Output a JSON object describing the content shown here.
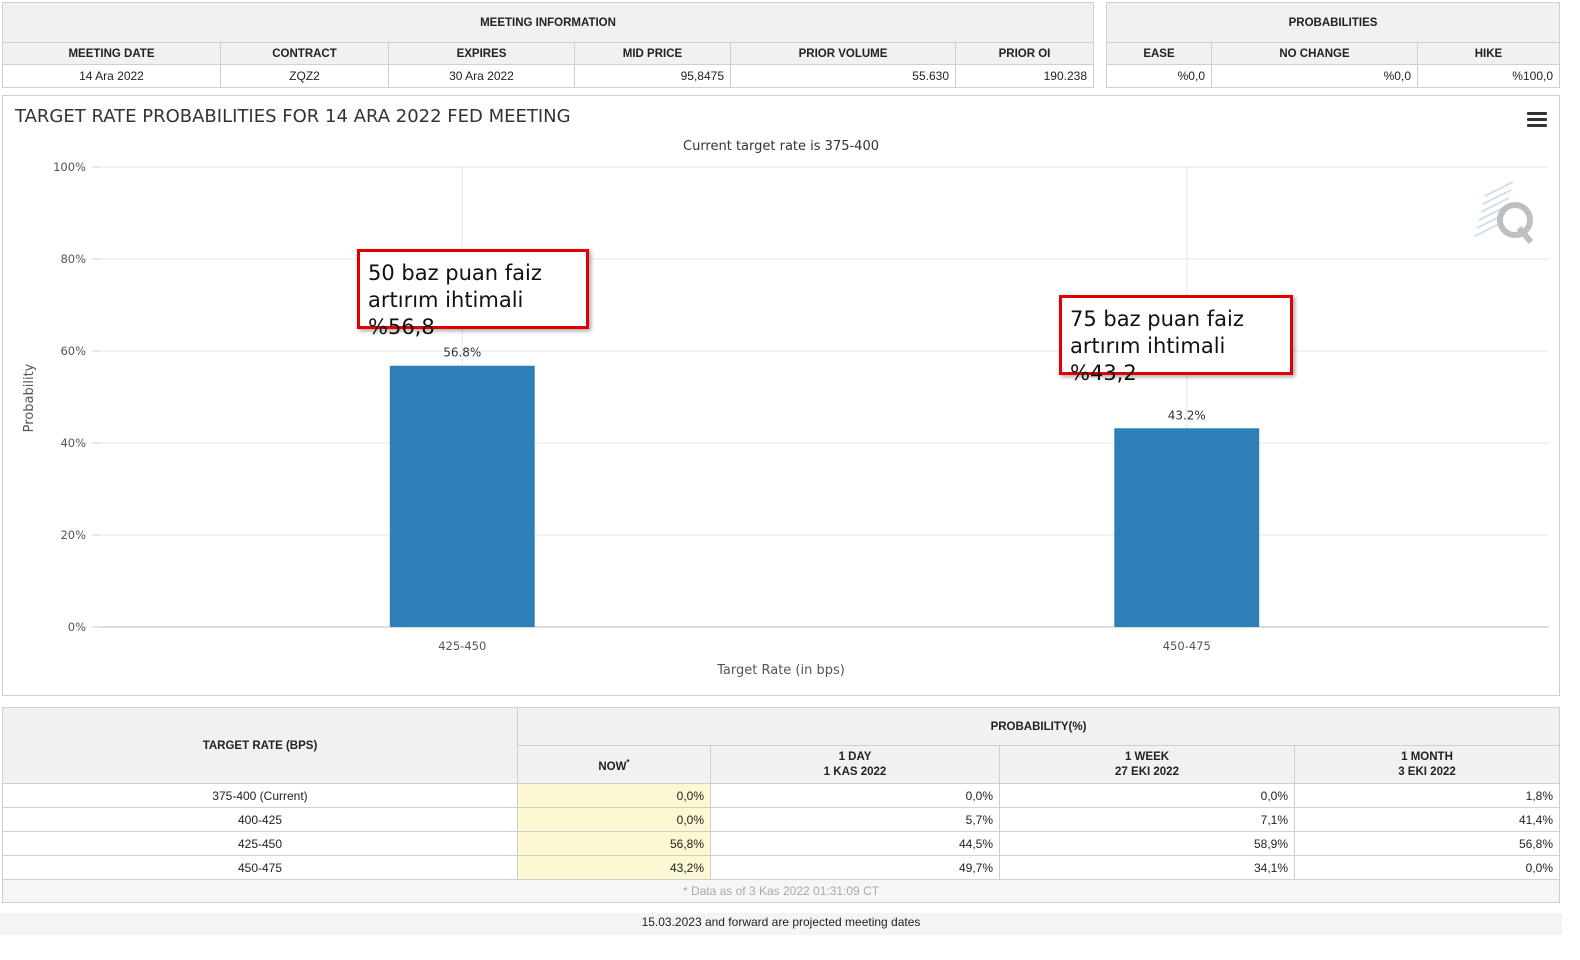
{
  "meeting_info": {
    "group_title": "MEETING INFORMATION",
    "headers": [
      "MEETING DATE",
      "CONTRACT",
      "EXPIRES",
      "MID PRICE",
      "PRIOR VOLUME",
      "PRIOR OI"
    ],
    "row": [
      "14 Ara 2022",
      "ZQZ2",
      "30 Ara 2022",
      "95,8475",
      "55.630",
      "190.238"
    ]
  },
  "probabilities": {
    "group_title": "PROBABILITIES",
    "headers": [
      "EASE",
      "NO CHANGE",
      "HIKE"
    ],
    "row": [
      "%0,0",
      "%0,0",
      "%100,0"
    ]
  },
  "chart_data": {
    "type": "bar",
    "title": "TARGET RATE PROBABILITIES FOR 14 ARA 2022 FED MEETING",
    "subtitle": "Current target rate is 375-400",
    "categories": [
      "425-450",
      "450-475"
    ],
    "values": [
      56.8,
      43.2
    ],
    "data_labels": [
      "56.8%",
      "43.2%"
    ],
    "xlabel": "Target Rate (in bps)",
    "ylabel": "Probability",
    "ylim": [
      0,
      100
    ],
    "yticks": [
      0,
      20,
      40,
      60,
      80,
      100
    ],
    "ytick_labels": [
      "0%",
      "20%",
      "40%",
      "60%",
      "80%",
      "100%"
    ],
    "bar_color": "#2e7fb8",
    "grid": true,
    "annotations": [
      {
        "line1": "50 baz puan faiz",
        "line2": "artırım ihtimali %56,8"
      },
      {
        "line1": "75 baz puan faiz",
        "line2": "artırım ihtimali %43,2"
      }
    ]
  },
  "rates_table": {
    "first_header": "TARGET RATE (BPS)",
    "group_title": "PROBABILITY(%)",
    "columns": [
      {
        "line1": "NOW",
        "line2": "",
        "sup": "*"
      },
      {
        "line1": "1 DAY",
        "line2": "1 KAS 2022",
        "sup": ""
      },
      {
        "line1": "1 WEEK",
        "line2": "27 EKI 2022",
        "sup": ""
      },
      {
        "line1": "1 MONTH",
        "line2": "3 EKI 2022",
        "sup": ""
      }
    ],
    "rows": [
      {
        "rate": "375-400 (Current)",
        "values": [
          "0,0%",
          "0,0%",
          "0,0%",
          "1,8%"
        ]
      },
      {
        "rate": "400-425",
        "values": [
          "0,0%",
          "5,7%",
          "7,1%",
          "41,4%"
        ]
      },
      {
        "rate": "425-450",
        "values": [
          "56,8%",
          "44,5%",
          "58,9%",
          "56,8%"
        ]
      },
      {
        "rate": "450-475",
        "values": [
          "43,2%",
          "49,7%",
          "34,1%",
          "0,0%"
        ]
      }
    ],
    "note": "* Data as of 3 Kas 2022 01:31:09 CT"
  },
  "footer_note": "15.03.2023 and forward are projected meeting dates",
  "icons": {
    "menu": "hamburger-menu-icon",
    "watermark": "cme-q-logo"
  }
}
